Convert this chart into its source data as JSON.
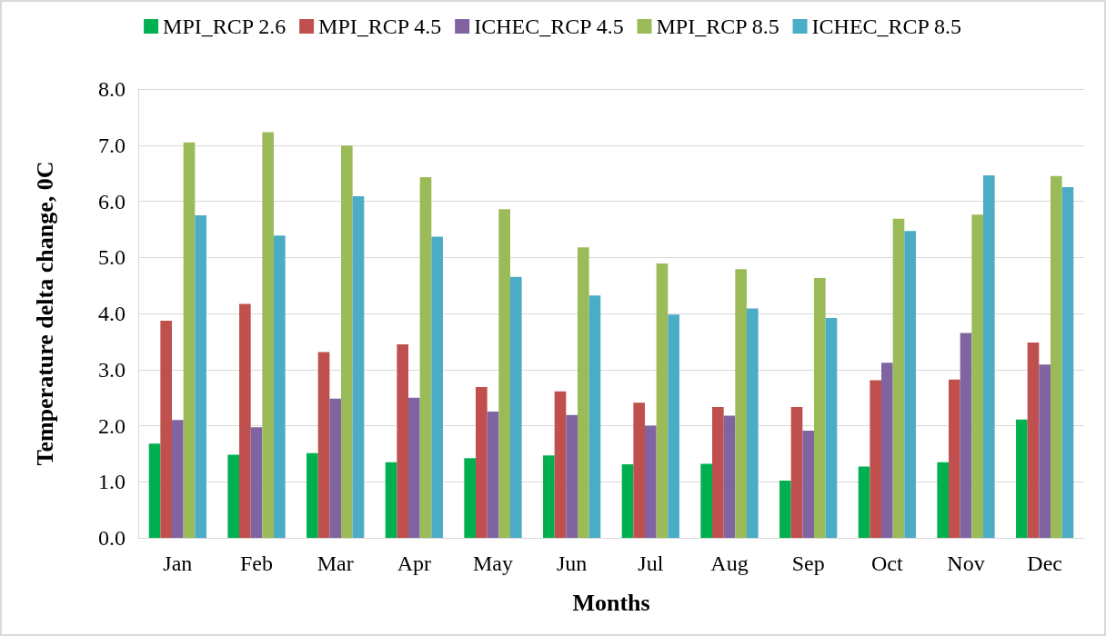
{
  "chart_data": {
    "type": "bar",
    "xlabel": "Months",
    "ylabel": "Temperature delta change, 0C",
    "categories": [
      "Jan",
      "Feb",
      "Mar",
      "Apr",
      "May",
      "Jun",
      "Jul",
      "Aug",
      "Sep",
      "Oct",
      "Nov",
      "Dec"
    ],
    "series": [
      {
        "name": "MPI_RCP 2.6",
        "color": "#00b050",
        "values": [
          1.68,
          1.48,
          1.51,
          1.35,
          1.42,
          1.47,
          1.31,
          1.32,
          1.02,
          1.27,
          1.35,
          2.11
        ]
      },
      {
        "name": "MPI_RCP 4.5",
        "color": "#c0504d",
        "values": [
          3.87,
          4.17,
          3.31,
          3.45,
          2.69,
          2.61,
          2.41,
          2.33,
          2.33,
          2.81,
          2.82,
          3.48
        ]
      },
      {
        "name": "ICHEC_RCP 4.5",
        "color": "#8064a2",
        "values": [
          2.1,
          1.97,
          2.48,
          2.5,
          2.25,
          2.19,
          2.0,
          2.18,
          1.91,
          3.12,
          3.65,
          3.09
        ]
      },
      {
        "name": "MPI_RCP 8.5",
        "color": "#9bbb59",
        "values": [
          7.05,
          7.23,
          6.99,
          6.43,
          5.86,
          5.18,
          4.89,
          4.79,
          4.63,
          5.69,
          5.76,
          6.45
        ]
      },
      {
        "name": "ICHEC_RCP 8.5",
        "color": "#4bacc6",
        "values": [
          5.75,
          5.39,
          6.09,
          5.37,
          4.65,
          4.32,
          3.98,
          4.09,
          3.92,
          5.47,
          6.46,
          6.25
        ]
      }
    ],
    "ylim": [
      0,
      8
    ],
    "yticks": [
      {
        "value": 0,
        "label": "0.0"
      },
      {
        "value": 1,
        "label": "1.0"
      },
      {
        "value": 2,
        "label": "2.0"
      },
      {
        "value": 3,
        "label": "3.0"
      },
      {
        "value": 4,
        "label": "4.0"
      },
      {
        "value": 5,
        "label": "5.0"
      },
      {
        "value": 6,
        "label": "6.0"
      },
      {
        "value": 7,
        "label": "7.0"
      },
      {
        "value": 8,
        "label": "8.0"
      }
    ],
    "grid": "y",
    "legend": "top"
  }
}
